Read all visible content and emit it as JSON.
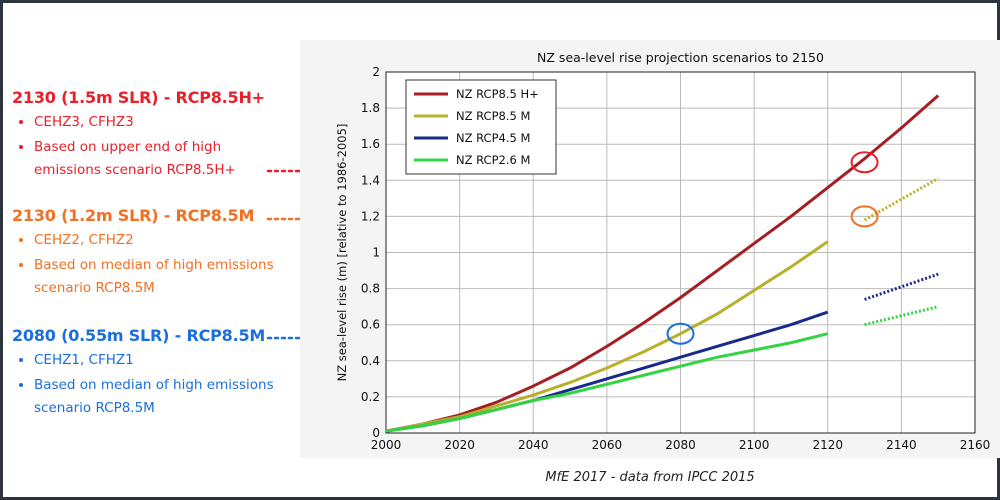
{
  "scenarios": [
    {
      "heading": "2130 (1.5m SLR) - RCP8.5H+",
      "color": "#e8202a",
      "bullets": [
        "CEHZ3, CFHZ3",
        "Based on upper end of high",
        "emissions scenario RCP8.5H+"
      ]
    },
    {
      "heading": "2130 (1.2m SLR) - RCP8.5M",
      "color": "#f36f21",
      "bullets": [
        "CEHZ2, CFHZ2",
        "Based on median of high emissions",
        "scenario RCP8.5M"
      ]
    },
    {
      "heading": "2080 (0.55m SLR) - RCP8.5M",
      "color": "#1a6fdc",
      "bullets": [
        "CEHZ1, CFHZ1",
        "Based on median of high emissions",
        "scenario RCP8.5M"
      ]
    }
  ],
  "caption": "MfE 2017 - data from IPCC 2015",
  "chart_data": {
    "type": "line",
    "title": "NZ sea-level rise projection scenarios to 2150",
    "xlabel": "",
    "ylabel": "NZ sea-level rise (m) [relative to 1986-2005]",
    "xlim": [
      2000,
      2160
    ],
    "ylim": [
      0,
      2
    ],
    "xticks": [
      2000,
      2020,
      2040,
      2060,
      2080,
      2100,
      2120,
      2140,
      2160
    ],
    "yticks": [
      0,
      0.2,
      0.4,
      0.6,
      0.8,
      1,
      1.2,
      1.4,
      1.6,
      1.8,
      2
    ],
    "grid": true,
    "legend_position": "top-left",
    "series": [
      {
        "name": "NZ RCP8.5 H+",
        "color": "#a31f24",
        "x": [
          2000,
          2010,
          2020,
          2030,
          2040,
          2050,
          2060,
          2070,
          2080,
          2090,
          2100,
          2110,
          2120,
          2130,
          2140,
          2150
        ],
        "y": [
          0.01,
          0.05,
          0.1,
          0.17,
          0.26,
          0.36,
          0.48,
          0.61,
          0.75,
          0.9,
          1.05,
          1.2,
          1.36,
          1.52,
          1.69,
          1.87
        ],
        "extension": null
      },
      {
        "name": "NZ RCP8.5 M",
        "color": "#b8b02a",
        "x": [
          2000,
          2010,
          2020,
          2030,
          2040,
          2050,
          2060,
          2070,
          2080,
          2090,
          2100,
          2110,
          2120
        ],
        "y": [
          0.01,
          0.05,
          0.09,
          0.15,
          0.21,
          0.28,
          0.36,
          0.45,
          0.55,
          0.66,
          0.79,
          0.92,
          1.06
        ],
        "extension": {
          "x": [
            2130,
            2150
          ],
          "y": [
            1.18,
            1.41
          ]
        }
      },
      {
        "name": "NZ RCP4.5 M",
        "color": "#1a2a8a",
        "x": [
          2000,
          2010,
          2020,
          2030,
          2040,
          2050,
          2060,
          2070,
          2080,
          2090,
          2100,
          2110,
          2120
        ],
        "y": [
          0.01,
          0.04,
          0.08,
          0.13,
          0.18,
          0.24,
          0.3,
          0.36,
          0.42,
          0.48,
          0.54,
          0.6,
          0.67
        ],
        "extension": {
          "x": [
            2130,
            2150
          ],
          "y": [
            0.74,
            0.88
          ]
        }
      },
      {
        "name": "NZ RCP2.6 M",
        "color": "#33d444",
        "x": [
          2000,
          2010,
          2020,
          2030,
          2040,
          2050,
          2060,
          2070,
          2080,
          2090,
          2100,
          2110,
          2120
        ],
        "y": [
          0.01,
          0.04,
          0.08,
          0.13,
          0.18,
          0.22,
          0.27,
          0.32,
          0.37,
          0.42,
          0.46,
          0.5,
          0.55
        ],
        "extension": {
          "x": [
            2130,
            2150
          ],
          "y": [
            0.6,
            0.7
          ]
        }
      }
    ],
    "annotations": [
      {
        "scenario": 0,
        "x": 2130,
        "y": 1.5,
        "color": "#e8202a"
      },
      {
        "scenario": 1,
        "x": 2130,
        "y": 1.2,
        "color": "#f36f21"
      },
      {
        "scenario": 2,
        "x": 2080,
        "y": 0.55,
        "color": "#1a6fdc"
      }
    ]
  }
}
